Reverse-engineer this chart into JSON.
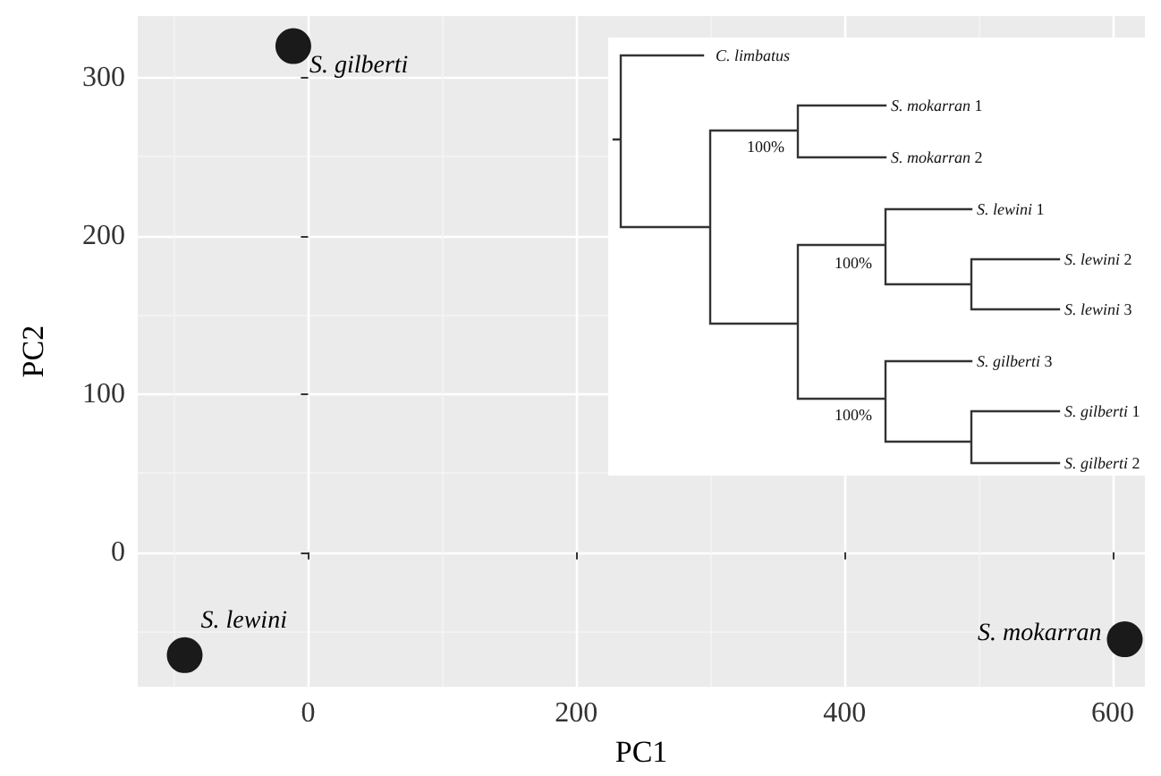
{
  "chart_data": {
    "type": "scatter",
    "xlabel": "PC1",
    "ylabel": "PC2",
    "x": [
      -11,
      -92,
      609
    ],
    "values": [
      320,
      -65,
      -55
    ],
    "color": "#1a1a1a",
    "marker": "circle",
    "xlim": [
      -127,
      624
    ],
    "xticks": [
      0,
      200,
      400,
      600
    ],
    "ylim": [
      -85,
      339
    ],
    "yticks": [
      0,
      100,
      200,
      300
    ],
    "grid": true,
    "annotations": [
      {
        "text": "S. gilberti",
        "x": -11,
        "y": 320
      },
      {
        "text": "S. lewini",
        "x": -92,
        "y": -65
      },
      {
        "text": "S. mokarran",
        "x": 609,
        "y": -55
      },
      "C. limbatus",
      "S. mokarran 1",
      "S. mokarran 2",
      "S. lewini 1",
      "S. lewini 2",
      "S. lewini 3",
      "S. gilberti 3",
      "S. gilberti 1",
      "S. gilberti 2",
      "100%",
      "100%",
      "100%"
    ]
  }
}
